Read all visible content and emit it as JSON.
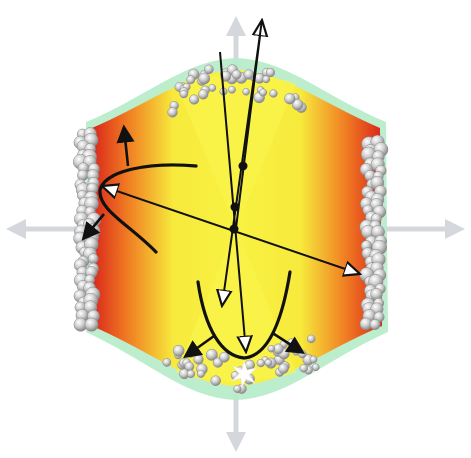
{
  "figure": {
    "background_color": "#ffffff",
    "colors": {
      "axis_arrow": "#d4d8dd",
      "field_yellow": "#f7ef3a",
      "field_orange": "#f29a24",
      "field_red": "#e0341c",
      "halo": "#a8e6c4",
      "bead": "#c8c8c8",
      "bead_shadow": "#7f7f7f",
      "line": "#111111",
      "spark": "#ffffff"
    },
    "elements": {
      "axis_arrows": [
        "up",
        "down",
        "left",
        "right"
      ],
      "bead_clusters": [
        "top",
        "bottom",
        "left",
        "right"
      ],
      "vectors": [
        "long-diagonal",
        "near-vertical-a",
        "near-vertical-b"
      ],
      "curved_paths": [
        "left-parabola",
        "bottom-parabola"
      ],
      "joint_points": 3,
      "spark_icon": "star-burst-icon"
    }
  }
}
